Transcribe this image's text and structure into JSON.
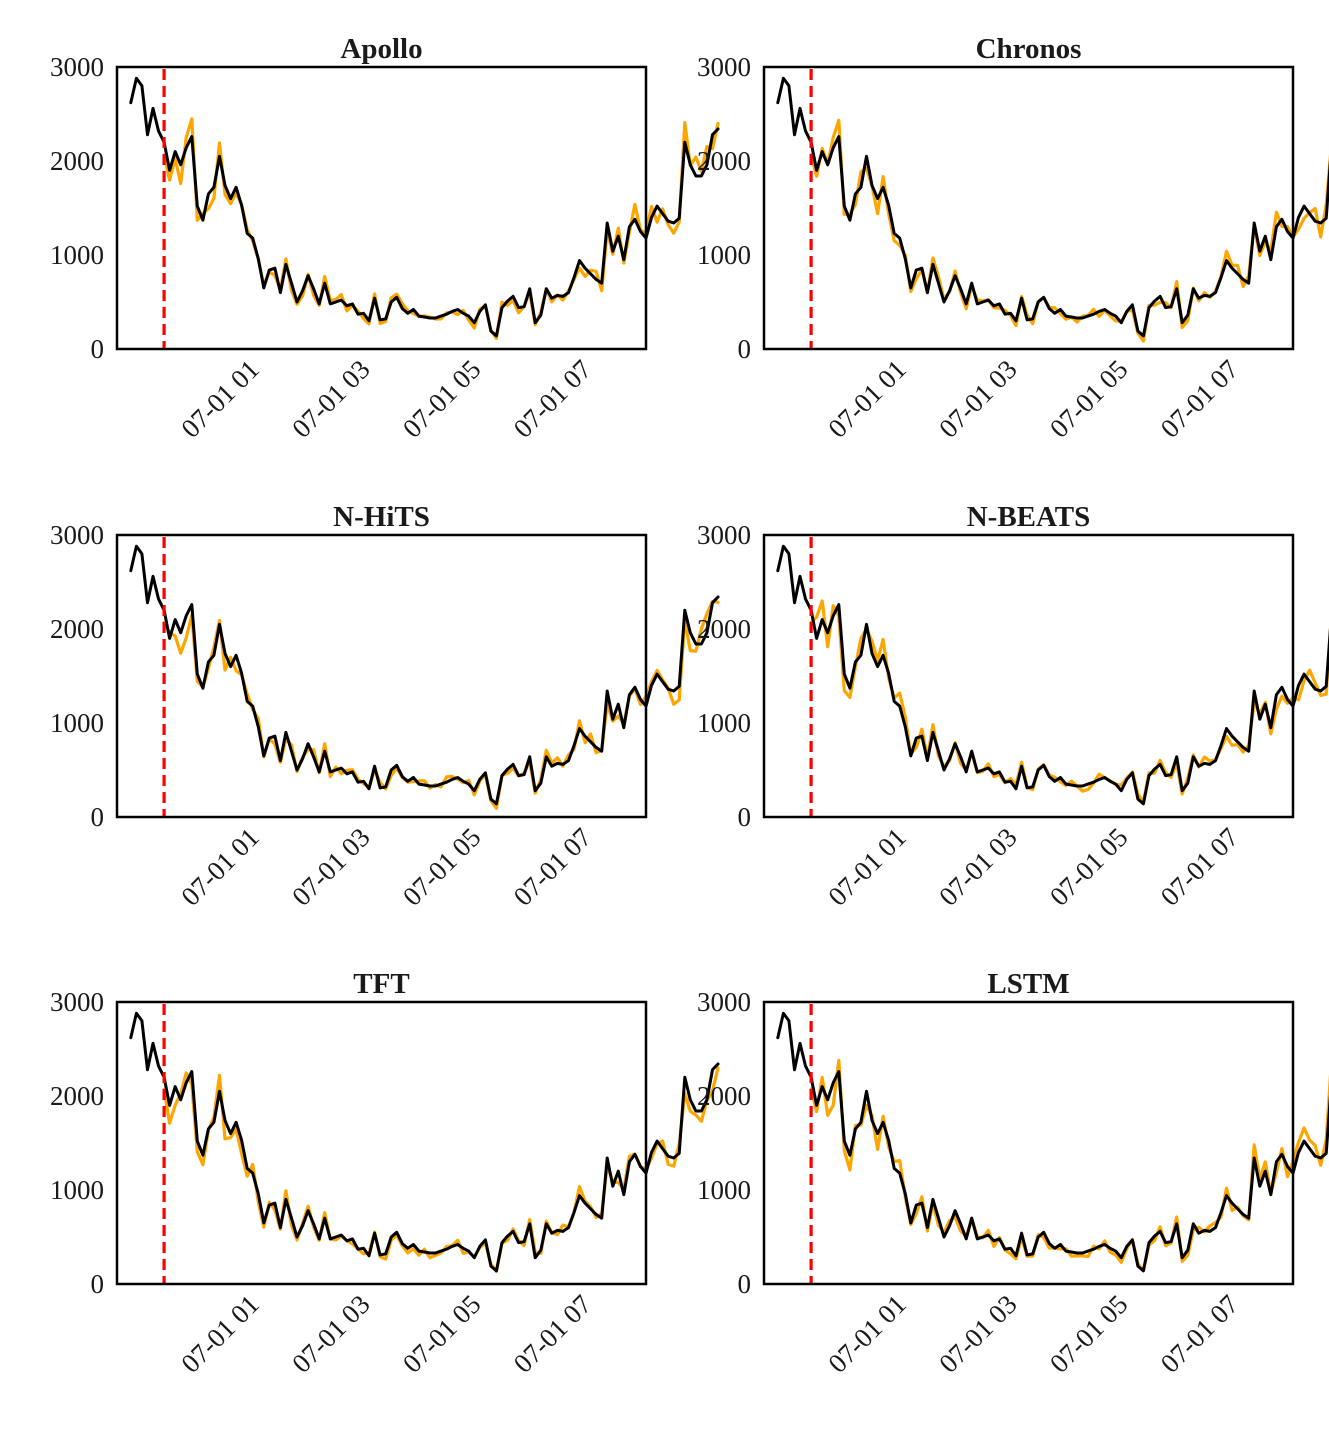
{
  "colors": {
    "actual": "#000000",
    "forecast": "#FFA500",
    "cutoff": "#FF0000",
    "frame": "#000000"
  },
  "chart_data": [
    {
      "type": "line",
      "title": "Apollo",
      "seed": 11
    },
    {
      "type": "line",
      "title": "Chronos",
      "seed": 23
    },
    {
      "type": "line",
      "title": "N-HiTS",
      "seed": 37
    },
    {
      "type": "line",
      "title": "N-BEATS",
      "seed": 41
    },
    {
      "type": "line",
      "title": "TFT",
      "seed": 53
    },
    {
      "type": "line",
      "title": "LSTM",
      "seed": 67
    }
  ],
  "shared": {
    "xlabel": "",
    "ylabel": "",
    "ylim": [
      0,
      3000
    ],
    "yticks": [
      0,
      1000,
      2000,
      3000
    ],
    "xlim_hours": [
      -1.45,
      8.1
    ],
    "xticks_hours": [
      1,
      3,
      5,
      7
    ],
    "xtick_labels": [
      "07-01 01",
      "07-01 03",
      "07-01 05",
      "07-01 07"
    ],
    "cutoff_hour": -0.6,
    "start_hour": -1.2,
    "step_hours": 0.1,
    "actual": [
      2620,
      2880,
      2800,
      2280,
      2560,
      2320,
      2200,
      1900,
      2100,
      1960,
      2140,
      2260,
      1520,
      1370,
      1650,
      1720,
      2050,
      1740,
      1600,
      1720,
      1530,
      1230,
      1180,
      960,
      650,
      840,
      860,
      600,
      900,
      700,
      500,
      620,
      780,
      640,
      480,
      700,
      480,
      500,
      520,
      460,
      480,
      370,
      380,
      300,
      540,
      310,
      320,
      500,
      550,
      430,
      380,
      420,
      350,
      340,
      330,
      330,
      350,
      370,
      400,
      420,
      380,
      350,
      280,
      400,
      470,
      190,
      140,
      440,
      510,
      560,
      440,
      450,
      640,
      280,
      360,
      640,
      540,
      570,
      560,
      600,
      760,
      940,
      860,
      800,
      740,
      700,
      1340,
      1040,
      1200,
      950,
      1300,
      1380,
      1250,
      1180,
      1400,
      1520,
      1440,
      1360,
      1340,
      1390,
      2200,
      1960,
      1840,
      1840,
      1960,
      2280,
      2340
    ]
  }
}
